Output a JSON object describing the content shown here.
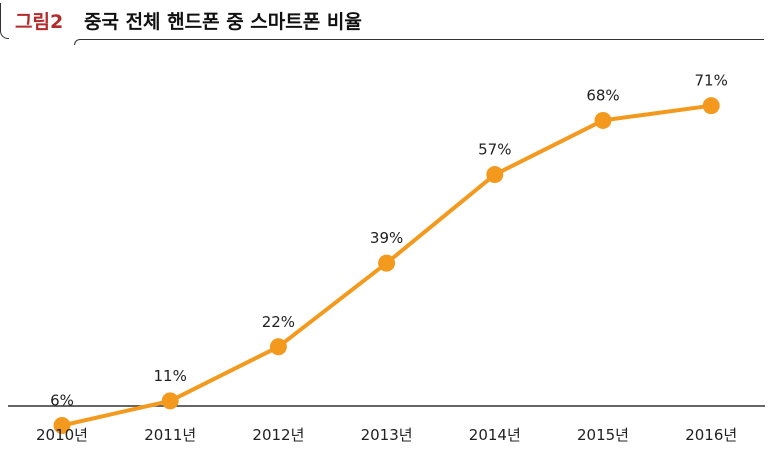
{
  "header": {
    "figure_label": "그림2",
    "title": "중국 전체 핸드폰 중 스마트폰 비율"
  },
  "colors": {
    "figure_label": "#b22a2a",
    "line": "#f39a1e",
    "axis": "#333333"
  },
  "chart_data": {
    "type": "line",
    "title": "중국 전체 핸드폰 중 스마트폰 비율",
    "categories": [
      "2010년",
      "2011년",
      "2012년",
      "2013년",
      "2014년",
      "2015년",
      "2016년"
    ],
    "values": [
      6,
      11,
      22,
      39,
      57,
      68,
      71
    ],
    "data_labels": [
      "6%",
      "11%",
      "22%",
      "39%",
      "57%",
      "68%",
      "71%"
    ],
    "ylim": [
      0,
      80
    ],
    "grid": false,
    "legend": "none"
  }
}
